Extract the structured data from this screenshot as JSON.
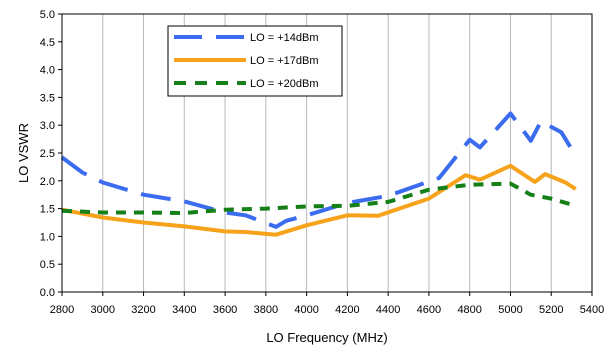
{
  "chart_data": {
    "type": "line",
    "xlabel": "LO Frequency (MHz)",
    "ylabel": "LO VSWR",
    "xlim": [
      2800,
      5400
    ],
    "ylim": [
      0.0,
      5.0
    ],
    "xticks": [
      "2800",
      "3000",
      "3200",
      "3400",
      "3600",
      "3800",
      "4000",
      "4200",
      "4400",
      "4600",
      "4800",
      "5000",
      "5200",
      "5400"
    ],
    "yticks": [
      "0.0",
      "0.5",
      "1.0",
      "1.5",
      "2.0",
      "2.5",
      "3.0",
      "3.5",
      "4.0",
      "4.5",
      "5.0"
    ],
    "grid": "vertical",
    "legend_position": "top-left",
    "series": [
      {
        "name": "LO = +14dBm",
        "color": "#3b6cf0",
        "style": "long-dash",
        "x": [
          2800,
          2900,
          3000,
          3200,
          3400,
          3600,
          3700,
          3850,
          3900,
          4000,
          4200,
          4400,
          4650,
          4800,
          4850,
          5000,
          5100,
          5150,
          5250,
          5320
        ],
        "y": [
          2.42,
          2.15,
          1.97,
          1.75,
          1.63,
          1.43,
          1.38,
          1.17,
          1.28,
          1.38,
          1.6,
          1.73,
          2.05,
          2.74,
          2.6,
          3.21,
          2.72,
          3.07,
          2.87,
          2.45
        ]
      },
      {
        "name": "LO = +17dBm",
        "color": "#f7a21b",
        "style": "solid",
        "x": [
          2800,
          3000,
          3200,
          3400,
          3600,
          3700,
          3850,
          4000,
          4200,
          4350,
          4600,
          4780,
          4850,
          5000,
          5120,
          5170,
          5270,
          5320
        ],
        "y": [
          1.48,
          1.34,
          1.25,
          1.18,
          1.09,
          1.08,
          1.03,
          1.2,
          1.38,
          1.37,
          1.68,
          2.1,
          2.02,
          2.27,
          1.98,
          2.12,
          1.97,
          1.85
        ]
      },
      {
        "name": "LO = +20dBm",
        "color": "#158018",
        "style": "short-dash",
        "x": [
          2800,
          3000,
          3200,
          3400,
          3600,
          3800,
          4000,
          4200,
          4400,
          4600,
          4800,
          5000,
          5100,
          5200,
          5320
        ],
        "y": [
          1.46,
          1.43,
          1.43,
          1.42,
          1.48,
          1.5,
          1.54,
          1.55,
          1.62,
          1.84,
          1.93,
          1.95,
          1.75,
          1.68,
          1.55
        ]
      }
    ]
  }
}
